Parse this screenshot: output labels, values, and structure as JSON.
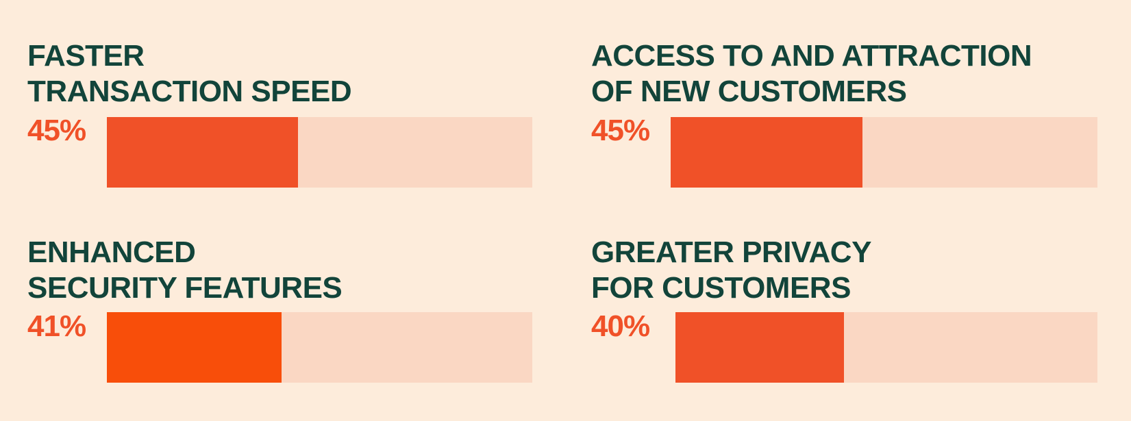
{
  "chart_data": {
    "type": "bar",
    "orientation": "horizontal",
    "xlim": [
      0,
      100
    ],
    "grid": false,
    "categories": [
      "FASTER\nTRANSACTION SPEED",
      "ACCESS TO AND ATTRACTION\nOF NEW CUSTOMERS",
      "ENHANCED\nSECURITY FEATURES",
      "GREATER PRIVACY\nFOR CUSTOMERS"
    ],
    "values": [
      45,
      45,
      41,
      40
    ],
    "labels": [
      "45%",
      "45%",
      "41%",
      "40%"
    ],
    "colors": {
      "title": "#12443a",
      "fill": [
        "#f05128",
        "#f05128",
        "#f84e0a",
        "#f05128"
      ],
      "track": "#fad7c3",
      "background": "#fdecdb"
    }
  }
}
